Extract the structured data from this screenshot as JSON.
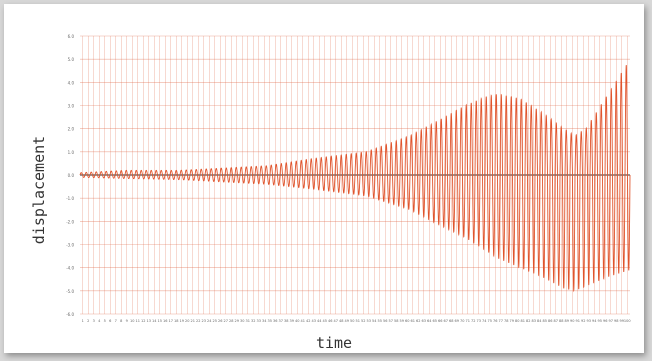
{
  "chart_data": {
    "type": "line",
    "xlabel": "time",
    "ylabel": "displacement",
    "grid": true,
    "legend": "none",
    "line_color": "#e0542c",
    "baseline_color": "#555555",
    "grid_color": "#e06a4a",
    "x_ticks": [
      "1",
      "2",
      "3",
      "4",
      "5",
      "6",
      "7",
      "8",
      "9",
      "10",
      "11",
      "12",
      "13",
      "14",
      "15",
      "16",
      "17",
      "18",
      "19",
      "20",
      "21",
      "22",
      "23",
      "24",
      "25",
      "26",
      "27",
      "28",
      "29",
      "30",
      "31",
      "32",
      "33",
      "34",
      "35",
      "36",
      "37",
      "38",
      "39",
      "40",
      "41",
      "42",
      "43",
      "44",
      "45",
      "46",
      "47",
      "48",
      "49",
      "50",
      "51",
      "52",
      "53",
      "54",
      "55",
      "56",
      "57",
      "58",
      "59",
      "60",
      "61",
      "62",
      "63",
      "64",
      "65",
      "66",
      "67",
      "68",
      "69",
      "70",
      "71",
      "72",
      "73",
      "74",
      "75",
      "76",
      "77",
      "78",
      "79",
      "80",
      "81",
      "82",
      "83",
      "84",
      "85",
      "86",
      "87",
      "88",
      "89",
      "90",
      "91",
      "92",
      "93",
      "94",
      "95",
      "96",
      "97",
      "98",
      "99",
      "100"
    ],
    "xlim": [
      0,
      100
    ],
    "y_ticks": [
      "6.0",
      "5.0",
      "4.0",
      "3.0",
      "2.0",
      "1.0",
      "0.0",
      "-1.0",
      "-2.0",
      "-3.0",
      "-4.0",
      "-5.0",
      "-6.0"
    ],
    "ylim": [
      -6,
      6
    ],
    "series": [
      {
        "envelope_x": [
          0,
          8,
          18,
          26,
          34,
          42,
          52,
          60,
          64,
          70,
          74,
          76,
          80,
          84,
          88,
          90,
          92,
          96,
          100
        ],
        "envelope_upper": [
          0.1,
          0.2,
          0.2,
          0.3,
          0.4,
          0.7,
          1.0,
          1.7,
          2.2,
          3.0,
          3.4,
          3.5,
          3.3,
          2.7,
          2.0,
          1.7,
          2.0,
          3.5,
          5.0
        ],
        "envelope_lower": [
          -0.1,
          -0.15,
          -0.2,
          -0.3,
          -0.4,
          -0.6,
          -0.9,
          -1.5,
          -2.0,
          -2.7,
          -3.3,
          -3.6,
          -4.0,
          -4.4,
          -4.9,
          -5.0,
          -4.8,
          -4.4,
          -4.1
        ],
        "cycles": 110
      }
    ]
  }
}
